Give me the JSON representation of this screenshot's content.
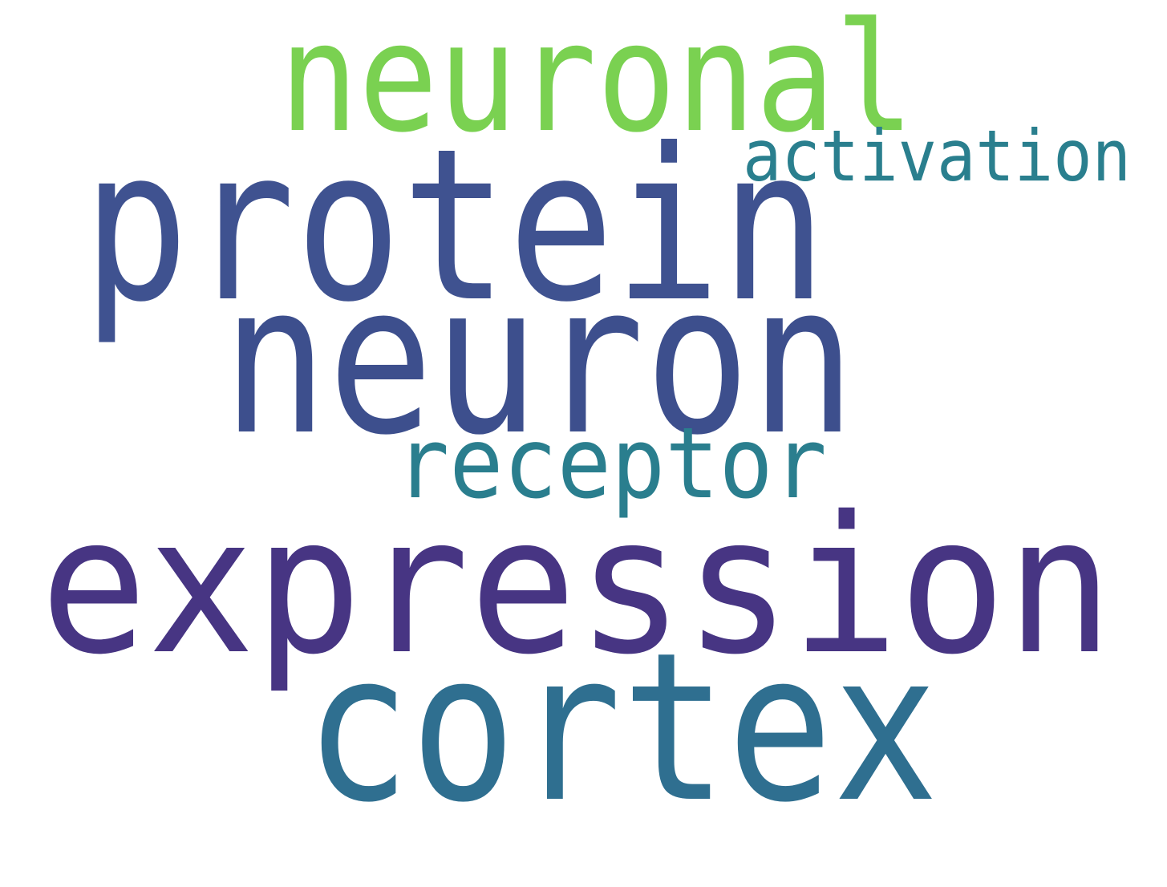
{
  "words": [
    {
      "text": "neuronal",
      "color": "#7ad151"
    },
    {
      "text": "activation",
      "color": "#2a7f8e"
    },
    {
      "text": "protein",
      "color": "#3f5290"
    },
    {
      "text": "neuron",
      "color": "#3d4f8d"
    },
    {
      "text": "receptor",
      "color": "#2a7e8e"
    },
    {
      "text": "expression",
      "color": "#473583"
    },
    {
      "text": "cortex",
      "color": "#2f6f90"
    }
  ]
}
